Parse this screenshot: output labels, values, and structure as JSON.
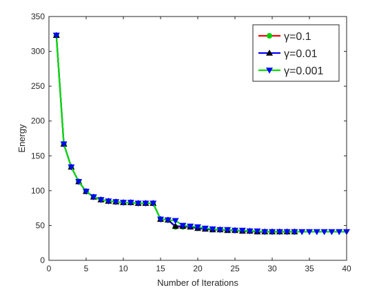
{
  "chart_data": {
    "type": "line",
    "title": "",
    "xlabel": "Number of Iterations",
    "ylabel": "Energy",
    "xlim": [
      0,
      40
    ],
    "ylim": [
      0,
      350
    ],
    "xticks": [
      0,
      5,
      10,
      15,
      20,
      25,
      30,
      35,
      40
    ],
    "yticks": [
      0,
      50,
      100,
      150,
      200,
      250,
      300,
      350
    ],
    "grid": false,
    "legend_position": "top-right",
    "series": [
      {
        "name": "γ=0.1",
        "color": "#ff0000",
        "marker": "circle",
        "marker_color": "#00d000",
        "x": [
          1,
          2,
          3,
          4,
          5,
          6,
          7,
          8,
          9,
          10,
          11,
          12,
          13,
          14,
          15,
          16,
          17,
          18,
          19,
          20,
          21,
          22,
          23,
          24,
          25,
          26,
          27,
          28,
          29,
          30,
          31,
          32,
          33
        ],
        "values": [
          323,
          167,
          134,
          113,
          99,
          91,
          87,
          85,
          84,
          83,
          83,
          82,
          82,
          82,
          59,
          58,
          48,
          48,
          48,
          46,
          45,
          44,
          44,
          43,
          43,
          42,
          42,
          41,
          41,
          41,
          41,
          41,
          41
        ]
      },
      {
        "name": "γ=0.01",
        "color": "#0000ff",
        "marker": "triangle-up",
        "marker_color": "#000000",
        "x": [
          1,
          2,
          3,
          4,
          5,
          6,
          7,
          8,
          9,
          10,
          11,
          12,
          13,
          14,
          15,
          16,
          17,
          18,
          19,
          20,
          21,
          22,
          23,
          24,
          25,
          26,
          27,
          28,
          29,
          30,
          31,
          32,
          33
        ],
        "values": [
          323,
          167,
          134,
          113,
          99,
          91,
          87,
          85,
          84,
          83,
          83,
          82,
          82,
          82,
          59,
          58,
          49,
          49,
          48,
          46,
          45,
          44,
          44,
          43,
          43,
          42,
          42,
          41,
          41,
          41,
          41,
          41,
          41
        ]
      },
      {
        "name": "γ=0.001",
        "color": "#00e000",
        "marker": "triangle-down",
        "marker_color": "#0000ff",
        "x": [
          1,
          2,
          3,
          4,
          5,
          6,
          7,
          8,
          9,
          10,
          11,
          12,
          13,
          14,
          15,
          16,
          17,
          18,
          19,
          20,
          21,
          22,
          23,
          24,
          25,
          26,
          27,
          28,
          29,
          30,
          31,
          32,
          33,
          34,
          35,
          36,
          37,
          38,
          39,
          40
        ],
        "values": [
          323,
          167,
          134,
          113,
          99,
          91,
          87,
          85,
          84,
          83,
          83,
          82,
          82,
          82,
          59,
          58,
          57,
          50,
          49,
          48,
          46,
          45,
          44,
          44,
          43,
          43,
          42,
          42,
          41,
          41,
          41,
          41,
          41,
          41,
          41,
          41,
          41,
          41,
          41,
          41
        ]
      }
    ]
  }
}
